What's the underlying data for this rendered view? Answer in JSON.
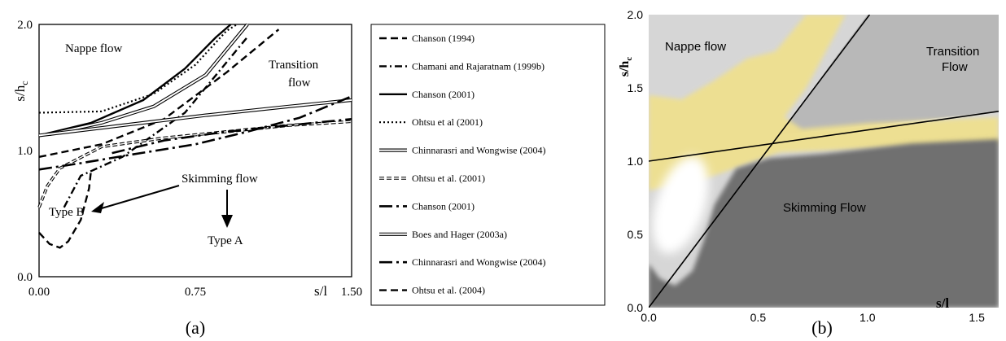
{
  "chart_data": [
    {
      "panel_label": "(a)",
      "type": "line",
      "xlabel": "s/l",
      "ylabel": "s/h",
      "ylabel_sub": "c",
      "xlim": [
        0,
        1.5
      ],
      "ylim": [
        0,
        2.0
      ],
      "xticks": [
        "0.00",
        "0.75",
        "1.50"
      ],
      "yticks": [
        "0.0",
        "1.0",
        "2.0"
      ],
      "annotations": {
        "nappe": "Nappe flow",
        "transition_1": "Transition",
        "transition_2": "flow",
        "skimming": "Skimming flow",
        "type_b": "Type B",
        "type_a": "Type A"
      },
      "series": [
        {
          "name": "Chanson (1994)",
          "style": "dash",
          "points": [
            [
              0,
              0.95
            ],
            [
              0.3,
              1.05
            ],
            [
              0.6,
              1.25
            ],
            [
              0.9,
              1.62
            ],
            [
              1.15,
              1.96
            ]
          ]
        },
        {
          "name": "Chamani and Rajaratnam (1999b)",
          "style": "dashdot",
          "points": [
            [
              0.12,
              0.55
            ],
            [
              0.2,
              0.8
            ],
            [
              0.4,
              0.95
            ],
            [
              0.7,
              1.3
            ],
            [
              0.9,
              1.7
            ],
            [
              1.0,
              1.9
            ]
          ]
        },
        {
          "name": "Chanson (2001)",
          "style": "solid",
          "points": [
            [
              0,
              1.12
            ],
            [
              0.25,
              1.22
            ],
            [
              0.5,
              1.4
            ],
            [
              0.7,
              1.65
            ],
            [
              0.85,
              1.9
            ],
            [
              0.92,
              2.0
            ]
          ]
        },
        {
          "name": "Ohtsu et al (2001)",
          "style": "dot",
          "points": [
            [
              0,
              1.3
            ],
            [
              0.3,
              1.31
            ],
            [
              0.55,
              1.45
            ],
            [
              0.75,
              1.68
            ],
            [
              0.9,
              1.95
            ],
            [
              0.95,
              2.0
            ]
          ]
        },
        {
          "name": "Chinnarasri and Wongwise (2004)",
          "style": "double",
          "points": [
            [
              0.05,
              1.13
            ],
            [
              0.3,
              1.22
            ],
            [
              0.55,
              1.35
            ],
            [
              0.8,
              1.6
            ],
            [
              1.0,
              2.0
            ]
          ]
        },
        {
          "name": "Ohtsu et al. (2001)",
          "style": "double-open",
          "points": [
            [
              0,
              0.55
            ],
            [
              0.04,
              0.72
            ],
            [
              0.1,
              0.86
            ],
            [
              0.3,
              1.03
            ],
            [
              0.6,
              1.1
            ],
            [
              0.9,
              1.15
            ],
            [
              1.2,
              1.2
            ],
            [
              1.5,
              1.23
            ]
          ]
        },
        {
          "name": "Chanson (2001)",
          "style": "longdash-dot",
          "points": [
            [
              0.35,
              0.98
            ],
            [
              0.6,
              1.08
            ],
            [
              0.9,
              1.15
            ],
            [
              1.2,
              1.2
            ],
            [
              1.5,
              1.25
            ]
          ]
        },
        {
          "name": "Boes and Hager (2003a)",
          "style": "double",
          "points": [
            [
              0,
              1.12
            ],
            [
              0.4,
              1.2
            ],
            [
              0.8,
              1.28
            ],
            [
              1.2,
              1.35
            ],
            [
              1.5,
              1.4
            ]
          ]
        },
        {
          "name": "Chinnarasri and Wongwise (2004)",
          "style": "longdash-dot",
          "points": [
            [
              0,
              0.85
            ],
            [
              0.2,
              0.9
            ],
            [
              0.45,
              0.97
            ],
            [
              0.75,
              1.05
            ],
            [
              1.0,
              1.15
            ],
            [
              1.25,
              1.26
            ],
            [
              1.5,
              1.43
            ]
          ]
        },
        {
          "name": "Ohtsu et al. (2004)",
          "style": "dash",
          "points": [
            [
              0,
              0.35
            ],
            [
              0.05,
              0.26
            ],
            [
              0.1,
              0.23
            ],
            [
              0.14,
              0.28
            ],
            [
              0.2,
              0.45
            ],
            [
              0.24,
              0.7
            ],
            [
              0.25,
              0.85
            ]
          ]
        }
      ]
    },
    {
      "panel_label": "(b)",
      "type": "scatter",
      "xlabel": "s/l",
      "ylabel": "s/h",
      "ylabel_sub": "c",
      "xlim": [
        0,
        1.6
      ],
      "ylim": [
        0,
        2.0
      ],
      "xticks": [
        "0.0",
        "0.5",
        "1.0",
        "1.5"
      ],
      "yticks": [
        "0.0",
        "0.5",
        "1.0",
        "1.5",
        "2.0"
      ],
      "region_labels": {
        "nappe": "Nappe flow",
        "transition_1": "Transition",
        "transition_2": "Flow",
        "skimming": "Skimming Flow"
      },
      "lines": [
        {
          "points": [
            [
              0,
              0
            ],
            [
              1.01,
              2.0
            ]
          ]
        },
        {
          "points": [
            [
              0,
              1.0
            ],
            [
              1.6,
              1.34
            ]
          ]
        }
      ],
      "colors": {
        "nappe": "#d6d6d6",
        "transition": "#b8b8b8",
        "skimming": "#6f6f6f",
        "band": "#efe08f",
        "open": "#ffffff"
      }
    }
  ]
}
